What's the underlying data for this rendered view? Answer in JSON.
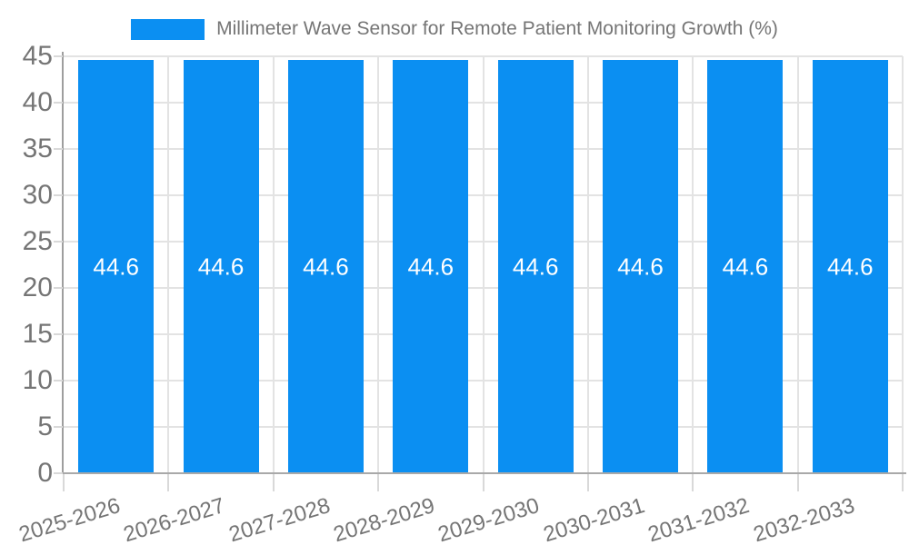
{
  "chart_data": {
    "type": "bar",
    "title": "Millimeter Wave Sensor for Remote Patient Monitoring Growth (%)",
    "legend_label": "Millimeter Wave Sensor for Remote Patient Monitoring Growth (%)",
    "legend_position": "top-center",
    "categories": [
      "2025-2026",
      "2026-2027",
      "2027-2028",
      "2028-2029",
      "2029-2030",
      "2030-2031",
      "2031-2032",
      "2032-2033"
    ],
    "series": [
      {
        "name": "Millimeter Wave Sensor for Remote Patient Monitoring Growth (%)",
        "values": [
          44.6,
          44.6,
          44.6,
          44.6,
          44.6,
          44.6,
          44.6,
          44.6
        ]
      }
    ],
    "bar_value_labels": [
      "44.6",
      "44.6",
      "44.6",
      "44.6",
      "44.6",
      "44.6",
      "44.6",
      "44.6"
    ],
    "xlabel": "",
    "ylabel": "",
    "ylim": [
      0,
      45
    ],
    "y_ticks": [
      0,
      5,
      10,
      15,
      20,
      25,
      30,
      35,
      40,
      45
    ],
    "grid": "horizontal-and-vertical",
    "x_tick_label_rotation_deg": -17,
    "colors": {
      "bar": "#0b8ff2",
      "bar_label_text": "#ffffff",
      "axis_text": "#757575",
      "title_text": "#757575",
      "gridline": "#e3e3e3",
      "tick_mark": "#d9d9d9",
      "y_axis_line": "#9e9e9e",
      "x_axis_line": "#a9a9a9",
      "background": "#ffffff"
    }
  }
}
